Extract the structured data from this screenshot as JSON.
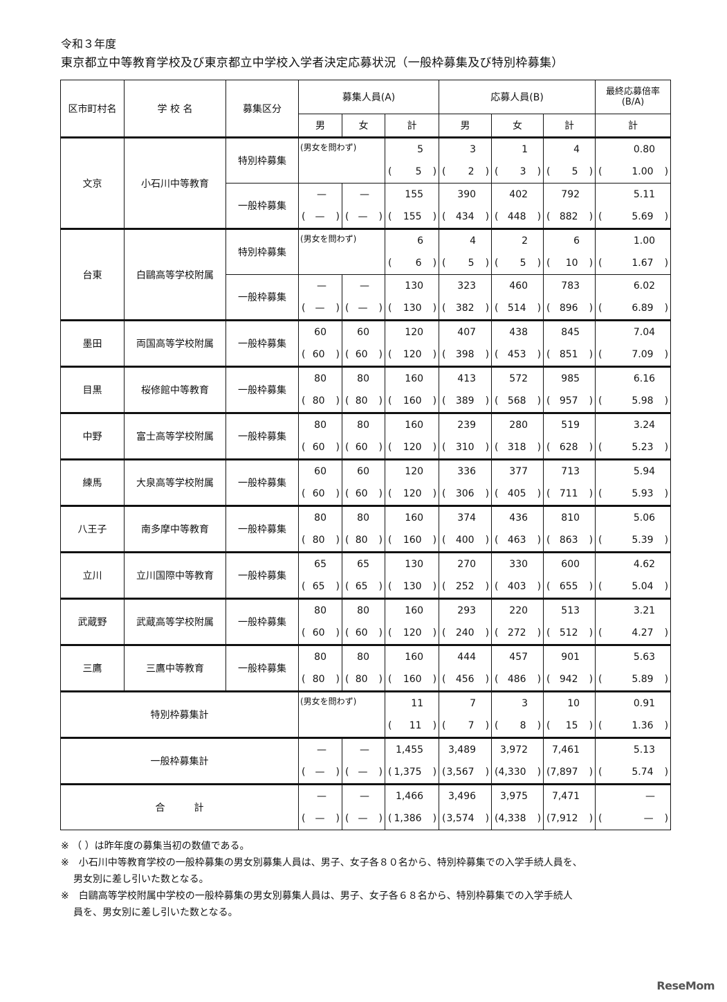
{
  "title_year": "令和３年度",
  "title_main": "東京都立中等教育学校及び東京都立中学校入学者決定応募状況（一般枠募集及び特別枠募集）",
  "headers": {
    "district": "区市町村名",
    "school": "学 校 名",
    "category": "募集区分",
    "recruit": "募集人員(A)",
    "applicants": "応募人員(B)",
    "ratio": "最終応募倍率\n(B/A)",
    "male": "男",
    "female": "女",
    "total": "計",
    "ratio_total": "計"
  },
  "note_any_gender": "(男女を問わず)",
  "schools": [
    {
      "district": "文京",
      "name": "小石川中等教育",
      "entries": [
        {
          "type": "特別枠募集",
          "special": true,
          "cur": [
            "",
            "",
            "5",
            "3",
            "1",
            "4",
            "0.80"
          ],
          "prev": [
            "",
            "",
            "5",
            "2",
            "3",
            "5",
            "1.00"
          ]
        },
        {
          "type": "一般枠募集",
          "cur": [
            "—",
            "—",
            "155",
            "390",
            "402",
            "792",
            "5.11"
          ],
          "prev": [
            "—",
            "—",
            "155",
            "434",
            "448",
            "882",
            "5.69"
          ]
        }
      ]
    },
    {
      "district": "台東",
      "name": "白鷗高等学校附属",
      "entries": [
        {
          "type": "特別枠募集",
          "special": true,
          "cur": [
            "",
            "",
            "6",
            "4",
            "2",
            "6",
            "1.00"
          ],
          "prev": [
            "",
            "",
            "6",
            "5",
            "5",
            "10",
            "1.67"
          ]
        },
        {
          "type": "一般枠募集",
          "cur": [
            "—",
            "—",
            "130",
            "323",
            "460",
            "783",
            "6.02"
          ],
          "prev": [
            "—",
            "—",
            "130",
            "382",
            "514",
            "896",
            "6.89"
          ]
        }
      ]
    },
    {
      "district": "墨田",
      "name": "両国高等学校附属",
      "entries": [
        {
          "type": "一般枠募集",
          "cur": [
            "60",
            "60",
            "120",
            "407",
            "438",
            "845",
            "7.04"
          ],
          "prev": [
            "60",
            "60",
            "120",
            "398",
            "453",
            "851",
            "7.09"
          ]
        }
      ]
    },
    {
      "district": "目黒",
      "name": "桜修館中等教育",
      "entries": [
        {
          "type": "一般枠募集",
          "cur": [
            "80",
            "80",
            "160",
            "413",
            "572",
            "985",
            "6.16"
          ],
          "prev": [
            "80",
            "80",
            "160",
            "389",
            "568",
            "957",
            "5.98"
          ]
        }
      ]
    },
    {
      "district": "中野",
      "name": "富士高等学校附属",
      "entries": [
        {
          "type": "一般枠募集",
          "cur": [
            "80",
            "80",
            "160",
            "239",
            "280",
            "519",
            "3.24"
          ],
          "prev": [
            "60",
            "60",
            "120",
            "310",
            "318",
            "628",
            "5.23"
          ]
        }
      ]
    },
    {
      "district": "練馬",
      "name": "大泉高等学校附属",
      "entries": [
        {
          "type": "一般枠募集",
          "cur": [
            "60",
            "60",
            "120",
            "336",
            "377",
            "713",
            "5.94"
          ],
          "prev": [
            "60",
            "60",
            "120",
            "306",
            "405",
            "711",
            "5.93"
          ]
        }
      ]
    },
    {
      "district": "八王子",
      "name": "南多摩中等教育",
      "entries": [
        {
          "type": "一般枠募集",
          "cur": [
            "80",
            "80",
            "160",
            "374",
            "436",
            "810",
            "5.06"
          ],
          "prev": [
            "80",
            "80",
            "160",
            "400",
            "463",
            "863",
            "5.39"
          ]
        }
      ]
    },
    {
      "district": "立川",
      "name": "立川国際中等教育",
      "entries": [
        {
          "type": "一般枠募集",
          "cur": [
            "65",
            "65",
            "130",
            "270",
            "330",
            "600",
            "4.62"
          ],
          "prev": [
            "65",
            "65",
            "130",
            "252",
            "403",
            "655",
            "5.04"
          ]
        }
      ]
    },
    {
      "district": "武蔵野",
      "name": "武蔵高等学校附属",
      "entries": [
        {
          "type": "一般枠募集",
          "cur": [
            "80",
            "80",
            "160",
            "293",
            "220",
            "513",
            "3.21"
          ],
          "prev": [
            "60",
            "60",
            "120",
            "240",
            "272",
            "512",
            "4.27"
          ]
        }
      ]
    },
    {
      "district": "三鷹",
      "name": "三鷹中等教育",
      "entries": [
        {
          "type": "一般枠募集",
          "cur": [
            "80",
            "80",
            "160",
            "444",
            "457",
            "901",
            "5.63"
          ],
          "prev": [
            "80",
            "80",
            "160",
            "456",
            "486",
            "942",
            "5.89"
          ]
        }
      ]
    }
  ],
  "totals": [
    {
      "label": "特別枠募集計",
      "special": true,
      "cur": [
        "",
        "",
        "11",
        "7",
        "3",
        "10",
        "0.91"
      ],
      "prev": [
        "",
        "",
        "11",
        "7",
        "8",
        "15",
        "1.36"
      ]
    },
    {
      "label": "一般枠募集計",
      "cur": [
        "—",
        "—",
        "1,455",
        "3,489",
        "3,972",
        "7,461",
        "5.13"
      ],
      "prev": [
        "—",
        "—",
        "1,375",
        "3,567",
        "4,330",
        "7,897",
        "5.74"
      ]
    },
    {
      "label": "合　　　計",
      "cur": [
        "—",
        "—",
        "1,466",
        "3,496",
        "3,975",
        "7,471",
        "—"
      ],
      "prev": [
        "—",
        "—",
        "1,386",
        "3,574",
        "4,338",
        "7,912",
        "—"
      ]
    }
  ],
  "notes": [
    "※ （ ）は昨年度の募集当初の数値である。",
    "※　小石川中等教育学校の一般枠募集の男女別募集人員は、男子、女子各８０名から、特別枠募集での入学手続人員を、",
    "男女別に差し引いた数となる。",
    "※　白鷗高等学校附属中学校の一般枠募集の男女別募集人員は、男子、女子各６８名から、特別枠募集での入学手続人",
    "員を、男女別に差し引いた数となる。"
  ],
  "logo": "ReseMom"
}
